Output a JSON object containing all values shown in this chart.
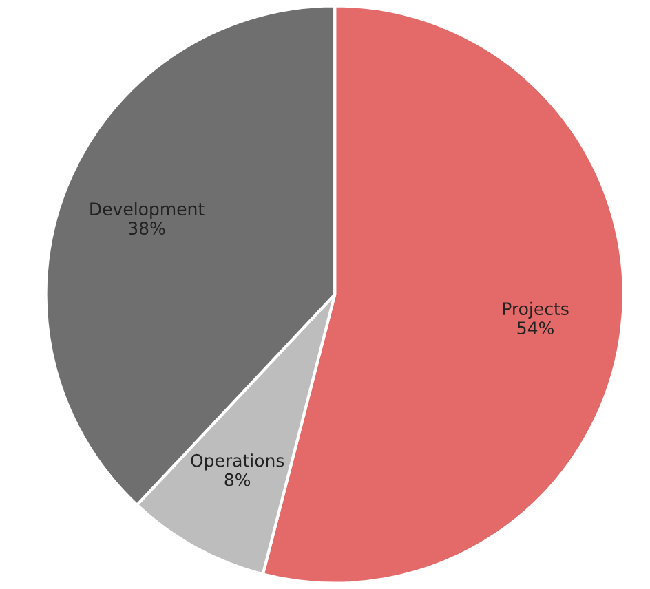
{
  "chart_data": {
    "type": "pie",
    "categories": [
      "Projects",
      "Operations",
      "Development"
    ],
    "values": [
      54,
      8,
      38
    ],
    "value_labels": [
      "54%",
      "8%",
      "38%"
    ],
    "colors": [
      "#e46a6a",
      "#bdbdbd",
      "#6f6f6f"
    ]
  }
}
